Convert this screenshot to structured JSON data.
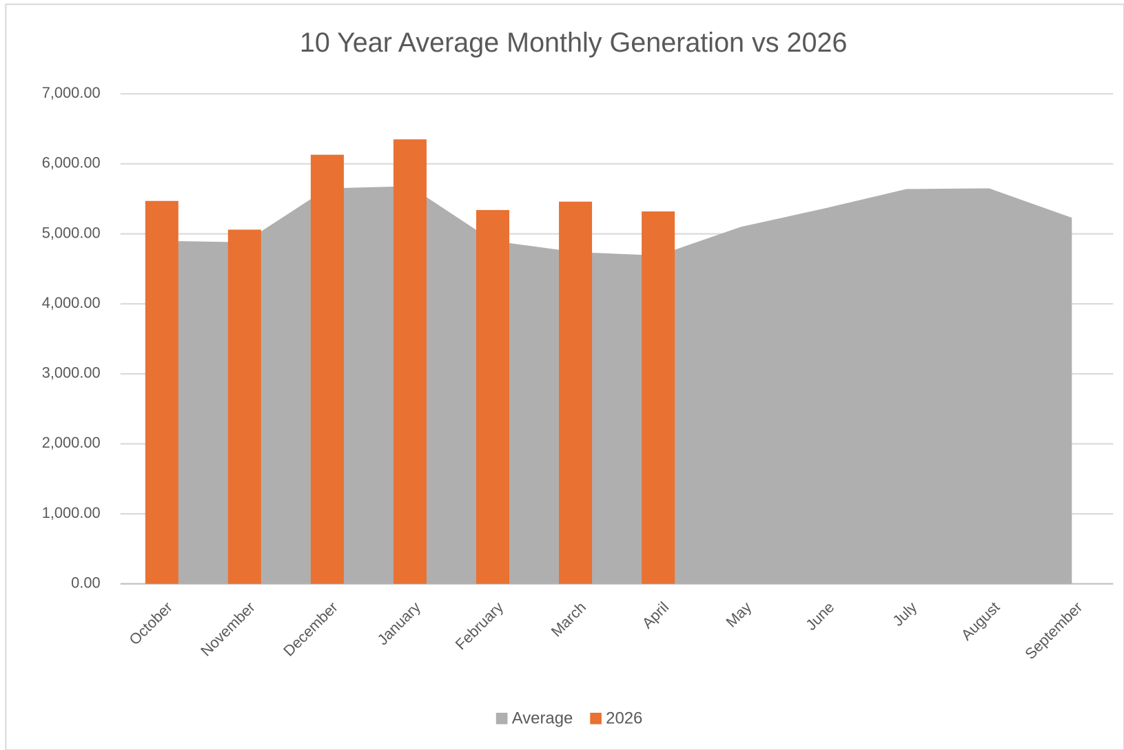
{
  "chart_data": {
    "type": "bar-area",
    "title": "10 Year Average Monthly Generation vs 2026",
    "categories": [
      "October",
      "November",
      "December",
      "January",
      "February",
      "March",
      "April",
      "May",
      "June",
      "July",
      "August",
      "September"
    ],
    "series": [
      {
        "name": "Average",
        "type": "area",
        "color": "#afafaf",
        "values": [
          4900,
          4880,
          5650,
          5680,
          4900,
          4740,
          4690,
          5100,
          5360,
          5640,
          5650,
          5230
        ]
      },
      {
        "name": "2026",
        "type": "bar",
        "color": "#e97132",
        "values": [
          5470,
          5060,
          6130,
          6350,
          5340,
          5460,
          5320,
          null,
          null,
          null,
          null,
          null
        ]
      }
    ],
    "ylim": [
      0,
      7000
    ],
    "yticks": [
      {
        "value": 0,
        "label": "0.00"
      },
      {
        "value": 1000,
        "label": "1,000.00"
      },
      {
        "value": 2000,
        "label": "2,000.00"
      },
      {
        "value": 3000,
        "label": "3,000.00"
      },
      {
        "value": 4000,
        "label": "4,000.00"
      },
      {
        "value": 5000,
        "label": "5,000.00"
      },
      {
        "value": 6000,
        "label": "6,000.00"
      },
      {
        "value": 7000,
        "label": "7,000.00"
      }
    ],
    "grid": true,
    "legend": "bottom"
  }
}
